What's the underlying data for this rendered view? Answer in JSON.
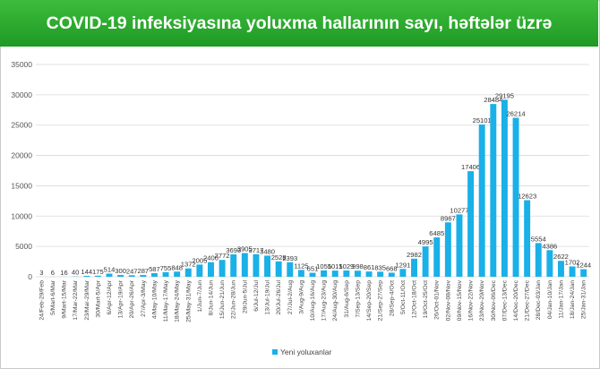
{
  "header": {
    "title": "COVID-19 infeksiyasına yoluxma hallarının sayı, həftələr üzrə"
  },
  "colors": {
    "banner": "#2aa82e",
    "bar": "#1ab0e8",
    "grid": "#d9d9d9"
  },
  "chart_data": {
    "type": "bar",
    "title": "COVID-19 infeksiyasına yoluxma hallarının sayı, həftələr üzrə",
    "ylim": [
      0,
      35000
    ],
    "yticks": [
      0,
      5000,
      10000,
      15000,
      20000,
      25000,
      30000,
      35000
    ],
    "grid": true,
    "legend_position": "bottom",
    "categories": [
      "24/Feb-29/Feb",
      "5/Mart-6/Mar",
      "9/Mart-15/Mar",
      "17/Mar-22/Mar",
      "23/Mar-29/Mar",
      "30/Mart-5/Apr",
      "6/Apr-12/Apr",
      "13/Apr-19/Apr",
      "20/Apr-26/Apr",
      "27/Apr-3/May",
      "4/May-10/May",
      "11/May-17/May",
      "18/May-24/May",
      "25/May-31/May",
      "1/Jun-7/Jun",
      "8/Jun-14/Jun",
      "15/Jun-21/Jun",
      "22/Jun-28/Jun",
      "29/Jun-5/Jul",
      "6/Jul-12/Jul",
      "13/Jul-19/Jul",
      "20/Jul-26/Jul",
      "27/Jul-2/Aug",
      "3/Aug-9/Aug",
      "10/Aug-16/Aug",
      "17/Aug-23/Aug",
      "24/Aug-30/Aug",
      "31/Aug-6/Sep",
      "7/Sep-13/Sep",
      "14/Sep-20/Sep",
      "21/Sep-27/Sep",
      "28/Sep-4/Oct",
      "5/Oct-11/Oct",
      "12/Oct-18/Oct",
      "19/Oct-25/Oct",
      "26/Oct-01/Nov",
      "02/Nov-08/Nov",
      "09/Nov-15/Nov",
      "16/Nov-22/Nov",
      "23/Nov-29/Nov",
      "30/Nov-06/Dec",
      "07/Dec-13/Dec",
      "14/Dec-20/Dec",
      "21/Dec-27/Dec",
      "28/Dec-03/Jan",
      "04/Jan-10/Jan",
      "11/Jan-17/Jan",
      "18/Jan-24/Jan",
      "25/Jan-31/Jan"
    ],
    "series": [
      {
        "name": "Yeni yoluxanlar",
        "values": [
          3,
          6,
          16,
          40,
          144,
          175,
          514,
          300,
          247,
          287,
          587,
          755,
          848,
          1372,
          2005,
          2400,
          2772,
          3693,
          3905,
          3717,
          3480,
          2528,
          2393,
          1125,
          651,
          1055,
          1015,
          1029,
          998,
          861,
          835,
          668,
          1291,
          2982,
          4995,
          6485,
          8967,
          10277,
          17406,
          25101,
          28484,
          29195,
          26214,
          12623,
          5554,
          4386,
          2622,
          1702,
          1244
        ]
      }
    ]
  }
}
